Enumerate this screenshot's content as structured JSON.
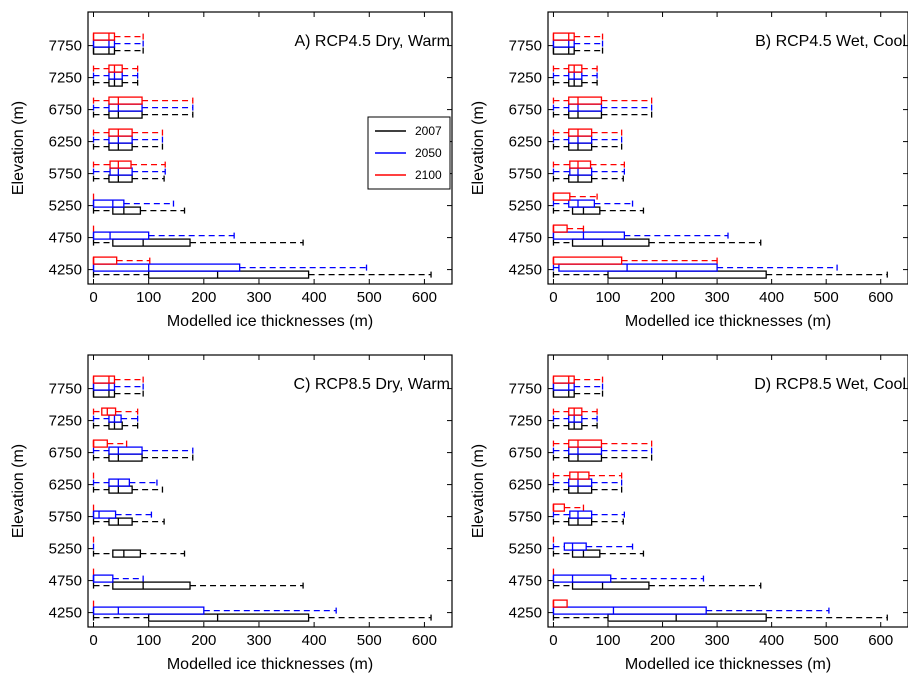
{
  "colors": {
    "2007": "#000000",
    "2050": "#0000ff",
    "2100": "#ff0000"
  },
  "chart_data": [
    {
      "type": "boxplot",
      "title": "A) RCP4.5 Dry, Warm",
      "xlabel": "Modelled ice thicknesses (m)",
      "ylabel": "Elevation (m)",
      "xlim": [
        -10,
        650
      ],
      "xticks": [
        "0",
        "100",
        "200",
        "300",
        "400",
        "500",
        "600"
      ],
      "categories": [
        "4250",
        "4750",
        "5250",
        "5750",
        "6250",
        "6750",
        "7250",
        "7750"
      ],
      "legend": {
        "placement": "center-right",
        "entries": [
          "2007",
          "2050",
          "2100"
        ]
      },
      "series": [
        {
          "name": "2007",
          "boxes": [
            [
              0,
              100,
              225,
              390,
              612
            ],
            [
              0,
              35,
              90,
              175,
              380
            ],
            [
              0,
              35,
              55,
              85,
              165
            ],
            [
              0,
              28,
              45,
              70,
              128
            ],
            [
              0,
              28,
              45,
              70,
              125
            ],
            [
              0,
              28,
              45,
              88,
              180
            ],
            [
              0,
              28,
              38,
              52,
              80
            ],
            [
              0,
              0,
              28,
              38,
              90
            ]
          ]
        },
        {
          "name": "2050",
          "boxes": [
            [
              0,
              0,
              100,
              265,
              495
            ],
            [
              0,
              0,
              30,
              100,
              255
            ],
            [
              0,
              0,
              35,
              55,
              145
            ],
            [
              0,
              30,
              45,
              70,
              130
            ],
            [
              0,
              28,
              45,
              70,
              125
            ],
            [
              0,
              28,
              45,
              88,
              180
            ],
            [
              0,
              28,
              38,
              52,
              80
            ],
            [
              0,
              0,
              28,
              38,
              90
            ]
          ]
        },
        {
          "name": "2100",
          "boxes": [
            [
              0,
              0,
              0,
              42,
              102
            ],
            [
              0,
              0,
              0,
              0,
              0
            ],
            [
              0,
              0,
              0,
              0,
              0
            ],
            [
              0,
              30,
              45,
              68,
              130
            ],
            [
              0,
              28,
              45,
              70,
              125
            ],
            [
              0,
              28,
              45,
              88,
              180
            ],
            [
              0,
              28,
              38,
              52,
              80
            ],
            [
              0,
              0,
              28,
              38,
              90
            ]
          ]
        }
      ]
    },
    {
      "type": "boxplot",
      "title": "B) RCP4.5 Wet, Cool",
      "xlabel": "Modelled ice thicknesses (m)",
      "ylabel": "Elevation (m)",
      "xlim": [
        -10,
        650
      ],
      "xticks": [
        "0",
        "100",
        "200",
        "300",
        "400",
        "500",
        "600"
      ],
      "categories": [
        "4250",
        "4750",
        "5250",
        "5750",
        "6250",
        "6750",
        "7250",
        "7750"
      ],
      "series": [
        {
          "name": "2007",
          "boxes": [
            [
              0,
              100,
              225,
              390,
              612
            ],
            [
              0,
              35,
              90,
              175,
              380
            ],
            [
              0,
              35,
              55,
              85,
              165
            ],
            [
              0,
              28,
              45,
              70,
              128
            ],
            [
              0,
              28,
              45,
              70,
              125
            ],
            [
              0,
              28,
              45,
              88,
              180
            ],
            [
              0,
              28,
              38,
              52,
              80
            ],
            [
              0,
              0,
              28,
              38,
              90
            ]
          ]
        },
        {
          "name": "2050",
          "boxes": [
            [
              0,
              10,
              135,
              300,
              520
            ],
            [
              0,
              0,
              55,
              130,
              320
            ],
            [
              0,
              28,
              45,
              75,
              145
            ],
            [
              0,
              30,
              45,
              70,
              130
            ],
            [
              0,
              28,
              45,
              70,
              125
            ],
            [
              0,
              28,
              45,
              88,
              180
            ],
            [
              0,
              28,
              38,
              52,
              80
            ],
            [
              0,
              0,
              28,
              38,
              90
            ]
          ]
        },
        {
          "name": "2100",
          "boxes": [
            [
              0,
              0,
              0,
              125,
              300
            ],
            [
              0,
              0,
              0,
              25,
              55
            ],
            [
              0,
              0,
              0,
              30,
              80
            ],
            [
              0,
              30,
              45,
              68,
              130
            ],
            [
              0,
              28,
              45,
              70,
              125
            ],
            [
              0,
              28,
              45,
              88,
              180
            ],
            [
              0,
              28,
              38,
              52,
              80
            ],
            [
              0,
              0,
              28,
              38,
              90
            ]
          ]
        }
      ]
    },
    {
      "type": "boxplot",
      "title": "C) RCP8.5 Dry, Warm",
      "xlabel": "Modelled ice thicknesses (m)",
      "ylabel": "Elevation (m)",
      "xlim": [
        -10,
        650
      ],
      "xticks": [
        "0",
        "100",
        "200",
        "300",
        "400",
        "500",
        "600"
      ],
      "categories": [
        "4250",
        "4750",
        "5250",
        "5750",
        "6250",
        "6750",
        "7250",
        "7750"
      ],
      "series": [
        {
          "name": "2007",
          "boxes": [
            [
              0,
              100,
              225,
              390,
              612
            ],
            [
              0,
              35,
              90,
              175,
              380
            ],
            [
              0,
              35,
              55,
              85,
              165
            ],
            [
              0,
              28,
              45,
              70,
              128
            ],
            [
              0,
              28,
              45,
              70,
              125
            ],
            [
              0,
              28,
              45,
              88,
              180
            ],
            [
              0,
              28,
              38,
              52,
              80
            ],
            [
              0,
              0,
              28,
              38,
              90
            ]
          ]
        },
        {
          "name": "2050",
          "boxes": [
            [
              0,
              0,
              45,
              200,
              440
            ],
            [
              0,
              0,
              0,
              35,
              90
            ],
            [
              0,
              0,
              0,
              0,
              0
            ],
            [
              0,
              0,
              10,
              40,
              105
            ],
            [
              0,
              28,
              45,
              65,
              115
            ],
            [
              0,
              28,
              45,
              88,
              180
            ],
            [
              0,
              28,
              38,
              50,
              80
            ],
            [
              0,
              0,
              28,
              38,
              90
            ]
          ]
        },
        {
          "name": "2100",
          "boxes": [
            [
              0,
              0,
              0,
              0,
              0
            ],
            [
              0,
              0,
              0,
              0,
              0
            ],
            [
              0,
              0,
              0,
              0,
              0
            ],
            [
              0,
              0,
              0,
              0,
              0
            ],
            [
              0,
              0,
              0,
              0,
              0
            ],
            [
              0,
              0,
              0,
              25,
              60
            ],
            [
              0,
              15,
              25,
              40,
              80
            ],
            [
              0,
              0,
              28,
              38,
              90
            ]
          ]
        }
      ]
    },
    {
      "type": "boxplot",
      "title": "D) RCP8.5 Wet, Cool",
      "xlabel": "Modelled ice thicknesses (m)",
      "ylabel": "Elevation (m)",
      "xlim": [
        -10,
        650
      ],
      "xticks": [
        "0",
        "100",
        "200",
        "300",
        "400",
        "500",
        "600"
      ],
      "categories": [
        "4250",
        "4750",
        "5250",
        "5750",
        "6250",
        "6750",
        "7250",
        "7750"
      ],
      "series": [
        {
          "name": "2007",
          "boxes": [
            [
              0,
              100,
              225,
              390,
              612
            ],
            [
              0,
              35,
              90,
              175,
              380
            ],
            [
              0,
              35,
              55,
              85,
              165
            ],
            [
              0,
              28,
              45,
              70,
              128
            ],
            [
              0,
              28,
              45,
              70,
              125
            ],
            [
              0,
              28,
              45,
              88,
              180
            ],
            [
              0,
              28,
              38,
              52,
              80
            ],
            [
              0,
              0,
              28,
              38,
              90
            ]
          ]
        },
        {
          "name": "2050",
          "boxes": [
            [
              0,
              0,
              110,
              280,
              505
            ],
            [
              0,
              0,
              35,
              105,
              275
            ],
            [
              0,
              20,
              35,
              60,
              145
            ],
            [
              0,
              30,
              45,
              70,
              130
            ],
            [
              0,
              28,
              45,
              70,
              125
            ],
            [
              0,
              28,
              45,
              88,
              180
            ],
            [
              0,
              28,
              38,
              52,
              80
            ],
            [
              0,
              0,
              28,
              38,
              90
            ]
          ]
        },
        {
          "name": "2100",
          "boxes": [
            [
              0,
              0,
              0,
              25,
              25
            ],
            [
              0,
              0,
              0,
              0,
              0
            ],
            [
              0,
              0,
              0,
              0,
              0
            ],
            [
              0,
              0,
              0,
              20,
              55
            ],
            [
              0,
              30,
              45,
              65,
              125
            ],
            [
              0,
              28,
              45,
              88,
              180
            ],
            [
              0,
              28,
              38,
              52,
              80
            ],
            [
              0,
              0,
              28,
              38,
              90
            ]
          ]
        }
      ]
    }
  ]
}
